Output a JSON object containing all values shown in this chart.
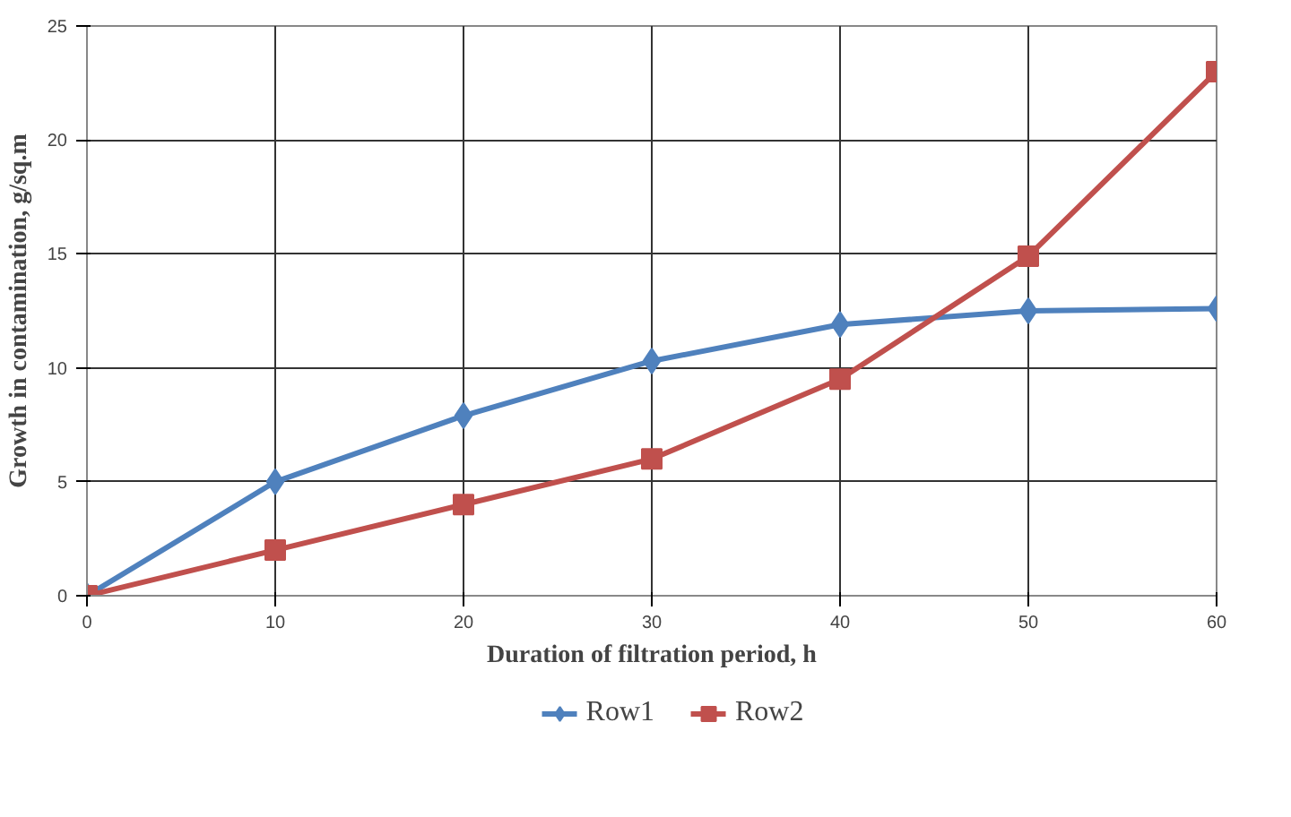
{
  "chart_data": {
    "type": "line",
    "xlabel": "Duration of filtration period, h",
    "ylabel": "Growth in contamination, g/sq.m",
    "x": [
      0,
      10,
      20,
      30,
      40,
      50,
      60
    ],
    "series": [
      {
        "name": "Row1",
        "color": "#4f81bd",
        "marker": "diamond",
        "values": [
          0,
          5,
          7.9,
          10.3,
          11.9,
          12.5,
          12.6
        ]
      },
      {
        "name": "Row2",
        "color": "#c0504d",
        "marker": "square",
        "values": [
          0,
          2,
          4,
          6,
          9.5,
          14.9,
          23
        ]
      }
    ],
    "xlim": [
      0,
      60
    ],
    "ylim": [
      0,
      25
    ],
    "xticks": [
      0,
      10,
      20,
      30,
      40,
      50,
      60
    ],
    "yticks": [
      0,
      5,
      10,
      15,
      20,
      25
    ],
    "grid": true,
    "legend": "bottom",
    "line_style": "solid"
  }
}
